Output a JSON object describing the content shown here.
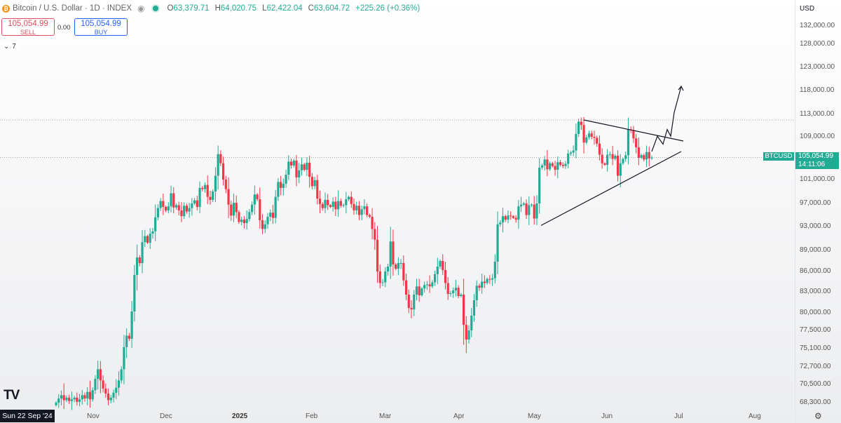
{
  "header": {
    "title": "Bitcoin / U.S. Dollar · 1D · INDEX",
    "logo_icon": "bitcoin-logo-icon",
    "ohlc": [
      {
        "key": "O",
        "value": "63,379.71"
      },
      {
        "key": "H",
        "value": "64,020.75"
      },
      {
        "key": "L",
        "value": "62,422.04"
      },
      {
        "key": "C",
        "value": "63,604.72"
      }
    ],
    "change": "+225.26 (+0.36%)"
  },
  "trade": {
    "sell_price": "105,054.99",
    "sell_label": "SELL",
    "spread": "0.00",
    "buy_price": "105,054.99",
    "buy_label": "BUY",
    "indicators_count": "7"
  },
  "price_tag": {
    "symbol": "BTCUSD",
    "price": "105,054.99",
    "countdown": "14:11:06"
  },
  "cursor_date": "Sun 22 Sep '24",
  "colors": {
    "up": "#22ab94",
    "down": "#f23645",
    "accent": "#2962ff"
  },
  "chart_data": {
    "type": "candlestick",
    "currency": "USD",
    "y_ticks": [
      132000,
      128000,
      123000,
      118000,
      113000,
      109000,
      105000,
      101000,
      97000,
      93000,
      89000,
      86000,
      83000,
      80000,
      77500,
      75100,
      72700,
      70500,
      68300
    ],
    "y_tick_labels": [
      "132,000.00",
      "128,000.00",
      "123,000.00",
      "118,000.00",
      "113,000.00",
      "109,000.00",
      "105,000.00",
      "101,000.00",
      "97,000.00",
      "93,000.00",
      "89,000.00",
      "86,000.00",
      "83,000.00",
      "80,000.00",
      "77,500.00",
      "75,100.00",
      "72,700.00",
      "70,500.00",
      "68,300.00"
    ],
    "x_labels": [
      "Nov",
      "Dec",
      "2025",
      "Feb",
      "Mar",
      "Apr",
      "May",
      "Jun",
      "Jul",
      "Aug"
    ],
    "last_price": 105054.99,
    "horizontal_lines": [
      112000,
      105054.99
    ],
    "closes": [
      68300,
      68800,
      69200,
      68600,
      68900,
      68500,
      68700,
      68900,
      68400,
      68700,
      69200,
      68800,
      69600,
      68700,
      69800,
      71200,
      72400,
      71000,
      70000,
      69400,
      68600,
      68900,
      69500,
      70100,
      71000,
      72400,
      75300,
      76800,
      76400,
      80200,
      85500,
      88000,
      87200,
      90400,
      91400,
      90300,
      91800,
      92200,
      94600,
      96200,
      97400,
      96400,
      95800,
      96500,
      98700,
      96300,
      96700,
      95800,
      94800,
      96600,
      95600,
      96200,
      97000,
      97500,
      96400,
      99600,
      99400,
      100100,
      98100,
      97600,
      99000,
      101700,
      105700,
      104000,
      101000,
      99400,
      96800,
      94900,
      97100,
      95500,
      93800,
      94200,
      93600,
      94300,
      95500,
      96800,
      98500,
      97700,
      94100,
      92600,
      93400,
      94700,
      95400,
      94500,
      98100,
      100600,
      99600,
      100300,
      101900,
      104300,
      103600,
      104500,
      101400,
      102700,
      103800,
      102800,
      104100,
      101500,
      99900,
      100900,
      97800,
      96900,
      96200,
      97600,
      96700,
      96400,
      97300,
      96000,
      97400,
      96600,
      96700,
      97700,
      98100,
      96900,
      95800,
      96600,
      95000,
      96000,
      96500,
      95000,
      94700,
      92600,
      90800,
      86000,
      84300,
      84400,
      86000,
      86700,
      90500,
      87000,
      86400,
      87200,
      87200,
      84700,
      82600,
      80700,
      80500,
      82600,
      83800,
      82500,
      83500,
      84000,
      84100,
      83800,
      84400,
      85600,
      86700,
      87500,
      86200,
      84300,
      82700,
      82800,
      83200,
      83600,
      82400,
      82600,
      78300,
      76300,
      77500,
      79600,
      81800,
      83900,
      83600,
      84500,
      84300,
      84900,
      84800,
      85000,
      87400,
      93400,
      93700,
      94800,
      94200,
      94900,
      94800,
      94500,
      94200,
      96500,
      96800,
      97000,
      95000,
      96700,
      96800,
      94400,
      97000,
      103200,
      103600,
      104700,
      102900,
      104000,
      103500,
      102800,
      104200,
      103700,
      103500,
      103900,
      105800,
      106000,
      106400,
      109500,
      111700,
      111100,
      107900,
      108900,
      109600,
      109000,
      108800,
      107700,
      105600,
      104000,
      103700,
      105600,
      105700,
      104800,
      105400,
      101700,
      104000,
      104800,
      105500,
      110300,
      110200,
      108700,
      107000,
      105000,
      105500,
      104700,
      106100,
      104900,
      105055
    ],
    "trendlines": [
      {
        "name": "resistance",
        "from": [
          "2025-05-22",
          112000
        ],
        "to": [
          "2025-06-30",
          108200
        ]
      },
      {
        "name": "support",
        "from": [
          "2025-04-30",
          93200
        ],
        "to": [
          "2025-06-30",
          106200
        ]
      }
    ],
    "projection": [
      [
        106200,
        109100
      ],
      [
        107600,
        110300
      ],
      [
        109100,
        110700
      ],
      [
        110900,
        113400
      ],
      [
        118900
      ]
    ]
  },
  "footer": {
    "logo_text": "TV",
    "settings_icon": "settings-gear-icon"
  }
}
